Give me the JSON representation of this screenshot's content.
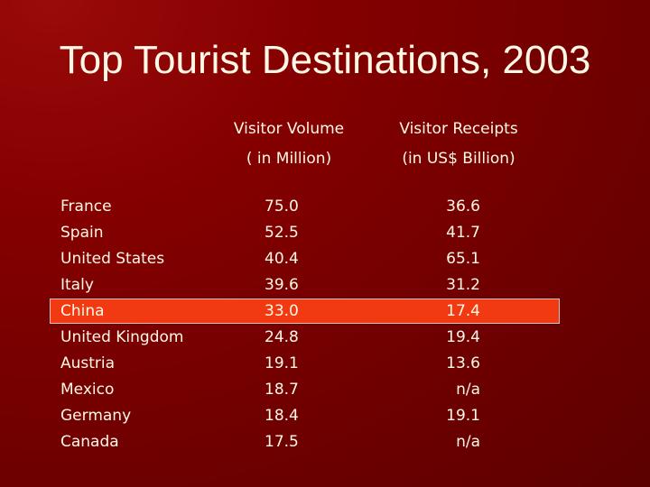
{
  "slide": {
    "title": "Top Tourist Destinations, 2003",
    "columns": {
      "volume": {
        "line1": "Visitor Volume",
        "line2": "( in Million)"
      },
      "receipts": {
        "line1": "Visitor Receipts",
        "line2": "(in US$ Billion)"
      }
    },
    "highlight_color": "#f23a12",
    "background_color": "#850000",
    "rows": [
      {
        "country": "France",
        "volume": "75.0",
        "receipts": "36.6"
      },
      {
        "country": "Spain",
        "volume": "52.5",
        "receipts": "41.7"
      },
      {
        "country": "United States",
        "volume": "40.4",
        "receipts": "65.1"
      },
      {
        "country": "Italy",
        "volume": "39.6",
        "receipts": "31.2"
      },
      {
        "country": "China",
        "volume": "33.0",
        "receipts": "17.4",
        "highlighted": true
      },
      {
        "country": "United Kingdom",
        "volume": "24.8",
        "receipts": "19.4"
      },
      {
        "country": "Austria",
        "volume": "19.1",
        "receipts": "13.6"
      },
      {
        "country": "Mexico",
        "volume": "18.7",
        "receipts": "n/a"
      },
      {
        "country": "Germany",
        "volume": "18.4",
        "receipts": "19.1"
      },
      {
        "country": "Canada",
        "volume": "17.5",
        "receipts": "n/a"
      }
    ]
  }
}
